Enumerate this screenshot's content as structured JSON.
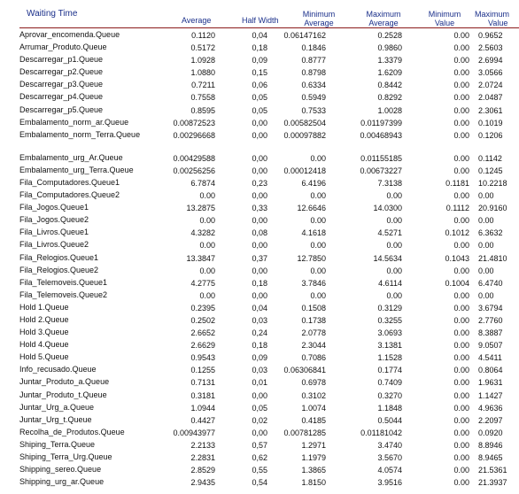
{
  "header": {
    "title": "Waiting Time",
    "average": "Average",
    "half_width": "Half Width",
    "minimum_average": [
      "Minimum",
      "Average"
    ],
    "maximum_average": [
      "Maximum",
      "Average"
    ],
    "minimum_value": [
      "Minimum",
      "Value"
    ],
    "maximum_value": [
      "Maximum",
      "Value"
    ]
  },
  "rows": [
    {
      "name": "Aprovar_encomenda.Queue",
      "avg": "0.1120",
      "hw": "0,04",
      "min_avg": "0.06147162",
      "max_avg": "0.2528",
      "min_val": "0.00",
      "max_val": "0.9652"
    },
    {
      "name": "Arrumar_Produto.Queue",
      "avg": "0.5172",
      "hw": "0,18",
      "min_avg": "0.1846",
      "max_avg": "0.9860",
      "min_val": "0.00",
      "max_val": "2.5603"
    },
    {
      "name": "Descarregar_p1.Queue",
      "avg": "1.0928",
      "hw": "0,09",
      "min_avg": "0.8777",
      "max_avg": "1.3379",
      "min_val": "0.00",
      "max_val": "2.6994"
    },
    {
      "name": "Descarregar_p2.Queue",
      "avg": "1.0880",
      "hw": "0,15",
      "min_avg": "0.8798",
      "max_avg": "1.6209",
      "min_val": "0.00",
      "max_val": "3.0566"
    },
    {
      "name": "Descarregar_p3.Queue",
      "avg": "0.7211",
      "hw": "0,06",
      "min_avg": "0.6334",
      "max_avg": "0.8442",
      "min_val": "0.00",
      "max_val": "2.0724"
    },
    {
      "name": "Descarregar_p4.Queue",
      "avg": "0.7558",
      "hw": "0,05",
      "min_avg": "0.5949",
      "max_avg": "0.8292",
      "min_val": "0.00",
      "max_val": "2.0487"
    },
    {
      "name": "Descarregar_p5.Queue",
      "avg": "0.8595",
      "hw": "0,05",
      "min_avg": "0.7533",
      "max_avg": "1.0028",
      "min_val": "0.00",
      "max_val": "2.3061"
    },
    {
      "name": "Embalamento_norm_ar.Queue",
      "avg": "0.00872523",
      "hw": "0,00",
      "min_avg": "0.00582504",
      "max_avg": "0.01197399",
      "min_val": "0.00",
      "max_val": "0.1019"
    },
    {
      "name": "Embalamento_norm_Terra.Queue",
      "avg": "0.00296668",
      "hw": "0,00",
      "min_avg": "0.00097882",
      "max_avg": "0.00468943",
      "min_val": "0.00",
      "max_val": "0.1206",
      "tall": true
    },
    {
      "name": "Embalamento_urg_Ar.Queue",
      "avg": "0.00429588",
      "hw": "0,00",
      "min_avg": "0.00",
      "max_avg": "0.01155185",
      "min_val": "0.00",
      "max_val": "0.1142"
    },
    {
      "name": "Embalamento_urg_Terra.Queue",
      "avg": "0.00256256",
      "hw": "0,00",
      "min_avg": "0.00012418",
      "max_avg": "0.00673227",
      "min_val": "0.00",
      "max_val": "0.1245"
    },
    {
      "name": "Fila_Computadores.Queue1",
      "avg": "6.7874",
      "hw": "0,23",
      "min_avg": "6.4196",
      "max_avg": "7.3138",
      "min_val": "0.1181",
      "max_val": "10.2218"
    },
    {
      "name": "Fila_Computadores.Queue2",
      "avg": "0.00",
      "hw": "0,00",
      "min_avg": "0.00",
      "max_avg": "0.00",
      "min_val": "0.00",
      "max_val": "0.00"
    },
    {
      "name": "Fila_Jogos.Queue1",
      "avg": "13.2875",
      "hw": "0,33",
      "min_avg": "12.6646",
      "max_avg": "14.0300",
      "min_val": "0.1112",
      "max_val": "20.9160"
    },
    {
      "name": "Fila_Jogos.Queue2",
      "avg": "0.00",
      "hw": "0,00",
      "min_avg": "0.00",
      "max_avg": "0.00",
      "min_val": "0.00",
      "max_val": "0.00"
    },
    {
      "name": "Fila_Livros.Queue1",
      "avg": "4.3282",
      "hw": "0,08",
      "min_avg": "4.1618",
      "max_avg": "4.5271",
      "min_val": "0.1012",
      "max_val": "6.3632"
    },
    {
      "name": "Fila_Livros.Queue2",
      "avg": "0.00",
      "hw": "0,00",
      "min_avg": "0.00",
      "max_avg": "0.00",
      "min_val": "0.00",
      "max_val": "0.00"
    },
    {
      "name": "Fila_Relogios.Queue1",
      "avg": "13.3847",
      "hw": "0,37",
      "min_avg": "12.7850",
      "max_avg": "14.5634",
      "min_val": "0.1043",
      "max_val": "21.4810"
    },
    {
      "name": "Fila_Relogios.Queue2",
      "avg": "0.00",
      "hw": "0,00",
      "min_avg": "0.00",
      "max_avg": "0.00",
      "min_val": "0.00",
      "max_val": "0.00"
    },
    {
      "name": "Fila_Telemoveis.Queue1",
      "avg": "4.2775",
      "hw": "0,18",
      "min_avg": "3.7846",
      "max_avg": "4.6114",
      "min_val": "0.1004",
      "max_val": "6.4740"
    },
    {
      "name": "Fila_Telemoveis.Queue2",
      "avg": "0.00",
      "hw": "0,00",
      "min_avg": "0.00",
      "max_avg": "0.00",
      "min_val": "0.00",
      "max_val": "0.00"
    },
    {
      "name": "Hold 1.Queue",
      "avg": "0.2395",
      "hw": "0,04",
      "min_avg": "0.1508",
      "max_avg": "0.3129",
      "min_val": "0.00",
      "max_val": "3.6794"
    },
    {
      "name": "Hold 2.Queue",
      "avg": "0.2502",
      "hw": "0,03",
      "min_avg": "0.1738",
      "max_avg": "0.3255",
      "min_val": "0.00",
      "max_val": "2.7760"
    },
    {
      "name": "Hold 3.Queue",
      "avg": "2.6652",
      "hw": "0,24",
      "min_avg": "2.0778",
      "max_avg": "3.0693",
      "min_val": "0.00",
      "max_val": "8.3887"
    },
    {
      "name": "Hold 4.Queue",
      "avg": "2.6629",
      "hw": "0,18",
      "min_avg": "2.3044",
      "max_avg": "3.1381",
      "min_val": "0.00",
      "max_val": "9.0507"
    },
    {
      "name": "Hold 5.Queue",
      "avg": "0.9543",
      "hw": "0,09",
      "min_avg": "0.7086",
      "max_avg": "1.1528",
      "min_val": "0.00",
      "max_val": "4.5411"
    },
    {
      "name": "Info_recusado.Queue",
      "avg": "0.1255",
      "hw": "0,03",
      "min_avg": "0.06306841",
      "max_avg": "0.1774",
      "min_val": "0.00",
      "max_val": "0.8064"
    },
    {
      "name": "Juntar_Produto_a.Queue",
      "avg": "0.7131",
      "hw": "0,01",
      "min_avg": "0.6978",
      "max_avg": "0.7409",
      "min_val": "0.00",
      "max_val": "1.9631"
    },
    {
      "name": "Juntar_Produto_t.Queue",
      "avg": "0.3181",
      "hw": "0,00",
      "min_avg": "0.3102",
      "max_avg": "0.3270",
      "min_val": "0.00",
      "max_val": "1.1427"
    },
    {
      "name": "Juntar_Urg_a.Queue",
      "avg": "1.0944",
      "hw": "0,05",
      "min_avg": "1.0074",
      "max_avg": "1.1848",
      "min_val": "0.00",
      "max_val": "4.9636"
    },
    {
      "name": "Juntar_Urg_t.Queue",
      "avg": "0.4427",
      "hw": "0,02",
      "min_avg": "0.4185",
      "max_avg": "0.5044",
      "min_val": "0.00",
      "max_val": "2.2097"
    },
    {
      "name": "Recolha_de_Produtos.Queue",
      "avg": "0.00943977",
      "hw": "0,00",
      "min_avg": "0.00781285",
      "max_avg": "0.01181042",
      "min_val": "0.00",
      "max_val": "0.0920"
    },
    {
      "name": "Shiping_Terra.Queue",
      "avg": "2.2133",
      "hw": "0,57",
      "min_avg": "1.2971",
      "max_avg": "3.4740",
      "min_val": "0.00",
      "max_val": "8.8946"
    },
    {
      "name": "Shiping_Terra_Urg.Queue",
      "avg": "2.2831",
      "hw": "0,62",
      "min_avg": "1.1979",
      "max_avg": "3.5670",
      "min_val": "0.00",
      "max_val": "8.9465"
    },
    {
      "name": "Shipping_sereo.Queue",
      "avg": "2.8529",
      "hw": "0,55",
      "min_avg": "1.3865",
      "max_avg": "4.0574",
      "min_val": "0.00",
      "max_val": "21.5361"
    },
    {
      "name": "Shipping_urg_ar.Queue",
      "avg": "2.9435",
      "hw": "0,54",
      "min_avg": "1.8150",
      "max_avg": "3.9516",
      "min_val": "0.00",
      "max_val": "21.3937"
    }
  ]
}
